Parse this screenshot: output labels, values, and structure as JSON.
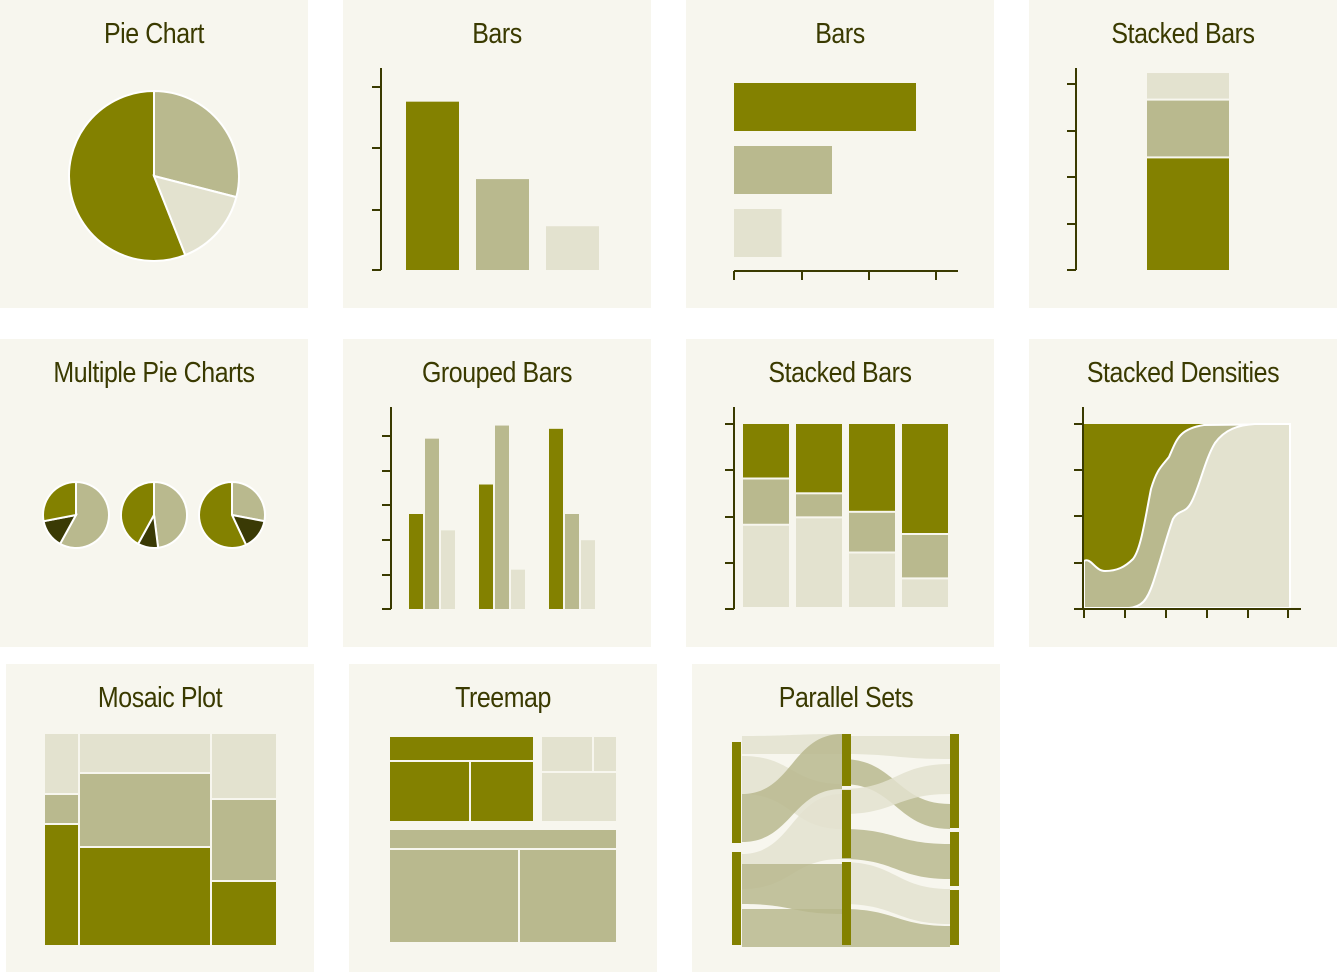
{
  "colors": {
    "dark": "#838100",
    "mid": "#b9b98e",
    "light": "#e3e2cf",
    "darkest": "#3a3a05",
    "axis": "#3a3a00",
    "tile_bg": "#f7f6ee"
  },
  "tiles": {
    "pie_chart": {
      "title": "Pie Chart"
    },
    "bars_vertical": {
      "title": "Bars"
    },
    "bars_horizontal": {
      "title": "Bars"
    },
    "stacked_bars_single": {
      "title": "Stacked Bars"
    },
    "multiple_pie_charts": {
      "title": "Multiple Pie Charts"
    },
    "grouped_bars": {
      "title": "Grouped Bars"
    },
    "stacked_bars_multi": {
      "title": "Stacked Bars"
    },
    "stacked_densities": {
      "title": "Stacked Densities"
    },
    "mosaic_plot": {
      "title": "Mosaic Plot"
    },
    "treemap": {
      "title": "Treemap"
    },
    "parallel_sets": {
      "title": "Parallel Sets"
    }
  },
  "chart_data": [
    {
      "type": "pie",
      "values": [
        56,
        29,
        15
      ]
    },
    {
      "type": "bar",
      "values": [
        100,
        54,
        26
      ],
      "ylim": [
        0,
        120
      ]
    },
    {
      "type": "bar",
      "orientation": "horizontal",
      "values": [
        3.25,
        1.75,
        0.85
      ],
      "xlim": [
        0,
        4
      ]
    },
    {
      "type": "bar",
      "stacked": true,
      "values": [
        2.4,
        1.2,
        0.55
      ],
      "ylim": [
        0,
        4
      ]
    },
    {
      "type": "pie",
      "multiple": true,
      "pies": [
        [
          28,
          14,
          58
        ],
        [
          42,
          10,
          48
        ],
        [
          57,
          15,
          28
        ]
      ]
    },
    {
      "type": "bar",
      "grouped": true,
      "series": [
        {
          "values": [
            29,
            38,
            55
          ]
        },
        {
          "values": [
            52,
            56,
            29
          ]
        },
        {
          "values": [
            24,
            12,
            21
          ]
        }
      ],
      "ylim": [
        0,
        58
      ]
    },
    {
      "type": "bar",
      "stacked": true,
      "normalized": true,
      "series": [
        {
          "values": [
            0.3,
            0.38,
            0.48,
            0.6
          ]
        },
        {
          "values": [
            0.25,
            0.13,
            0.22,
            0.24
          ]
        },
        {
          "values": [
            0.45,
            0.49,
            0.3,
            0.16
          ]
        }
      ]
    },
    {
      "type": "area",
      "stacked": true,
      "normalized": true
    },
    {
      "type": "mosaic"
    },
    {
      "type": "treemap"
    },
    {
      "type": "parallel_sets"
    }
  ]
}
